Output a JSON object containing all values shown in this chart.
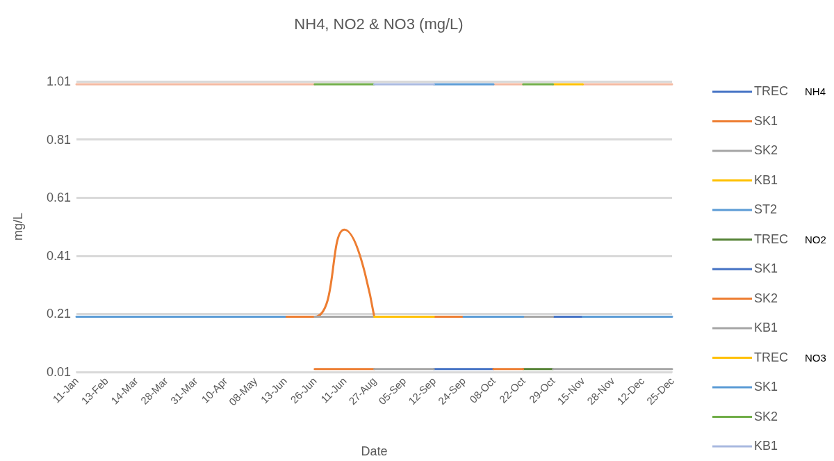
{
  "chart_data": {
    "type": "line",
    "title": "NH4, NO2 & NO3 (mg/L)",
    "xlabel": "Date",
    "ylabel": "mg/L",
    "categories": [
      "11-Jan",
      "13-Feb",
      "14-Mar",
      "28-Mar",
      "31-Mar",
      "10-Apr",
      "08-May",
      "13-Jun",
      "26-Jun",
      "11-Jun",
      "27-Aug",
      "05-Sep",
      "12-Sep",
      "24-Sep",
      "08-Oct",
      "22-Oct",
      "29-Oct",
      "15-Nov",
      "28-Nov",
      "12-Dec",
      "25-Dec"
    ],
    "ylim": [
      0.01,
      1.01
    ],
    "yticks": [
      0.01,
      0.21,
      0.41,
      0.61,
      0.81,
      1.01
    ],
    "grid": "y",
    "legend": "right",
    "marker": "none",
    "line_style": "solid",
    "annotations": [
      "NH4",
      "NO2",
      "NO3"
    ],
    "series": [
      {
        "color": "#f4b8a0",
        "values": [
          1.0,
          1.0,
          1.0,
          1.0,
          1.0,
          1.0,
          1.0,
          1.0,
          1.0,
          null,
          null,
          null,
          null,
          null,
          1.0,
          1.0,
          null,
          1.0,
          1.0,
          1.0,
          1.0
        ]
      },
      {
        "name": "TREC",
        "color": "#4472c4",
        "values": [
          null,
          null,
          null,
          null,
          null,
          null,
          null,
          null,
          null,
          null,
          null,
          null,
          null,
          null,
          null,
          null,
          0.2,
          0.2,
          null,
          null,
          null
        ]
      },
      {
        "name": "SK1",
        "color": "#ed7d31",
        "values": [
          null,
          null,
          null,
          null,
          null,
          null,
          null,
          0.2,
          0.2,
          0.5,
          0.2,
          null,
          0.2,
          0.2,
          null,
          null,
          null,
          null,
          null,
          null,
          null
        ]
      },
      {
        "name": "SK2",
        "color": "#a5a5a5",
        "values": [
          null,
          null,
          null,
          null,
          null,
          null,
          null,
          null,
          0.2,
          0.2,
          0.2,
          null,
          null,
          null,
          null,
          0.2,
          0.2,
          null,
          null,
          null,
          null
        ]
      },
      {
        "name": "KB1",
        "color": "#ffc000",
        "values": [
          null,
          null,
          null,
          null,
          null,
          null,
          null,
          null,
          null,
          null,
          0.2,
          0.2,
          0.2,
          null,
          null,
          null,
          null,
          null,
          null,
          null,
          null
        ]
      },
      {
        "name": "ST2",
        "color": "#5b9bd5",
        "values": [
          0.2,
          0.2,
          0.2,
          0.2,
          0.2,
          0.2,
          0.2,
          0.2,
          null,
          null,
          null,
          null,
          null,
          0.2,
          0.2,
          0.2,
          null,
          0.2,
          0.2,
          0.2,
          0.2
        ]
      },
      {
        "name": "TREC",
        "color": "#548235",
        "values": [
          null,
          null,
          null,
          null,
          null,
          null,
          null,
          null,
          null,
          null,
          null,
          null,
          null,
          null,
          null,
          0.02,
          0.02,
          null,
          null,
          null,
          null
        ]
      },
      {
        "name": "SK1",
        "color": "#4472c4",
        "values": [
          null,
          null,
          null,
          null,
          null,
          null,
          null,
          null,
          null,
          null,
          null,
          null,
          0.02,
          0.02,
          0.02,
          null,
          null,
          null,
          null,
          null,
          null
        ]
      },
      {
        "name": "SK2",
        "color": "#ed7d31",
        "values": [
          null,
          null,
          null,
          null,
          null,
          null,
          null,
          null,
          0.02,
          0.02,
          0.02,
          null,
          null,
          null,
          0.02,
          0.02,
          null,
          null,
          null,
          null,
          null
        ]
      },
      {
        "name": "KB1",
        "color": "#a5a5a5",
        "values": [
          null,
          null,
          null,
          null,
          null,
          null,
          null,
          null,
          null,
          null,
          0.02,
          0.02,
          0.02,
          null,
          null,
          null,
          0.02,
          0.02,
          0.02,
          0.02,
          0.02
        ]
      },
      {
        "name": "TREC",
        "color": "#ffc000",
        "values": [
          null,
          null,
          null,
          null,
          null,
          null,
          null,
          null,
          null,
          null,
          null,
          null,
          null,
          null,
          null,
          null,
          1.0,
          1.0,
          null,
          null,
          null
        ]
      },
      {
        "name": "SK1",
        "color": "#5b9bd5",
        "values": [
          null,
          null,
          null,
          null,
          null,
          null,
          null,
          null,
          null,
          null,
          null,
          null,
          1.0,
          1.0,
          1.0,
          null,
          null,
          null,
          null,
          null,
          null
        ]
      },
      {
        "name": "SK2",
        "color": "#70ad47",
        "values": [
          null,
          null,
          null,
          null,
          null,
          null,
          null,
          null,
          1.0,
          1.0,
          1.0,
          null,
          null,
          null,
          null,
          1.0,
          1.0,
          null,
          null,
          null,
          null
        ]
      },
      {
        "name": "KB1",
        "color": "#a9b9e0",
        "values": [
          null,
          null,
          null,
          null,
          null,
          null,
          null,
          null,
          null,
          null,
          1.0,
          1.0,
          1.0,
          null,
          null,
          null,
          null,
          null,
          null,
          null,
          null
        ]
      }
    ]
  }
}
